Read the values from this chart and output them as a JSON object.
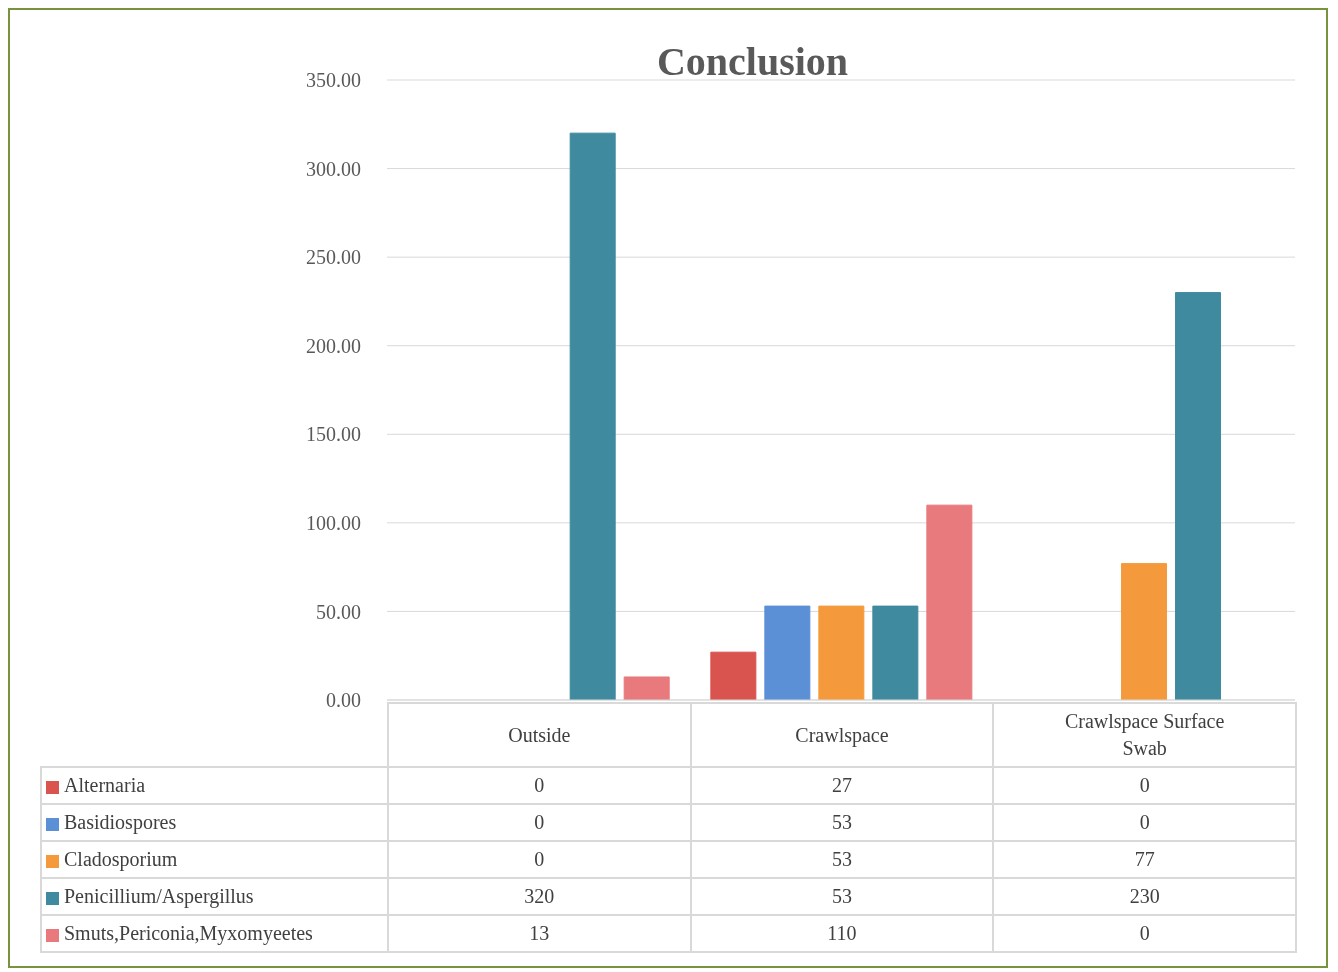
{
  "chart_data": {
    "type": "bar",
    "title": "Conclusion",
    "categories": [
      "Outside",
      "Crawlspace",
      "Crawlspace Surface Swab"
    ],
    "series": [
      {
        "name": "Alternaria",
        "color": "#d9534f",
        "values": [
          0,
          27,
          0
        ]
      },
      {
        "name": "Basidiospores",
        "color": "#5b8fd6",
        "values": [
          0,
          53,
          0
        ]
      },
      {
        "name": "Cladosporium",
        "color": "#f59a3c",
        "values": [
          0,
          53,
          77
        ]
      },
      {
        "name": "Penicillium/Aspergillus",
        "color": "#3f8a9f",
        "values": [
          320,
          53,
          230
        ]
      },
      {
        "name": "Smuts,Periconia,Myxomyeetes",
        "color": "#e8797c",
        "values": [
          13,
          110,
          0
        ]
      }
    ],
    "ylim": [
      0,
      350
    ],
    "yticks": [
      {
        "value": 0,
        "label": "0.00"
      },
      {
        "value": 50,
        "label": "50.00"
      },
      {
        "value": 100,
        "label": "100.00"
      },
      {
        "value": 150,
        "label": "150.00"
      },
      {
        "value": 200,
        "label": "200.00"
      },
      {
        "value": 250,
        "label": "250.00"
      },
      {
        "value": 300,
        "label": "300.00"
      },
      {
        "value": 350,
        "label": "350.00"
      }
    ],
    "grid": "y",
    "legend": "bottom",
    "data_labels": true
  }
}
